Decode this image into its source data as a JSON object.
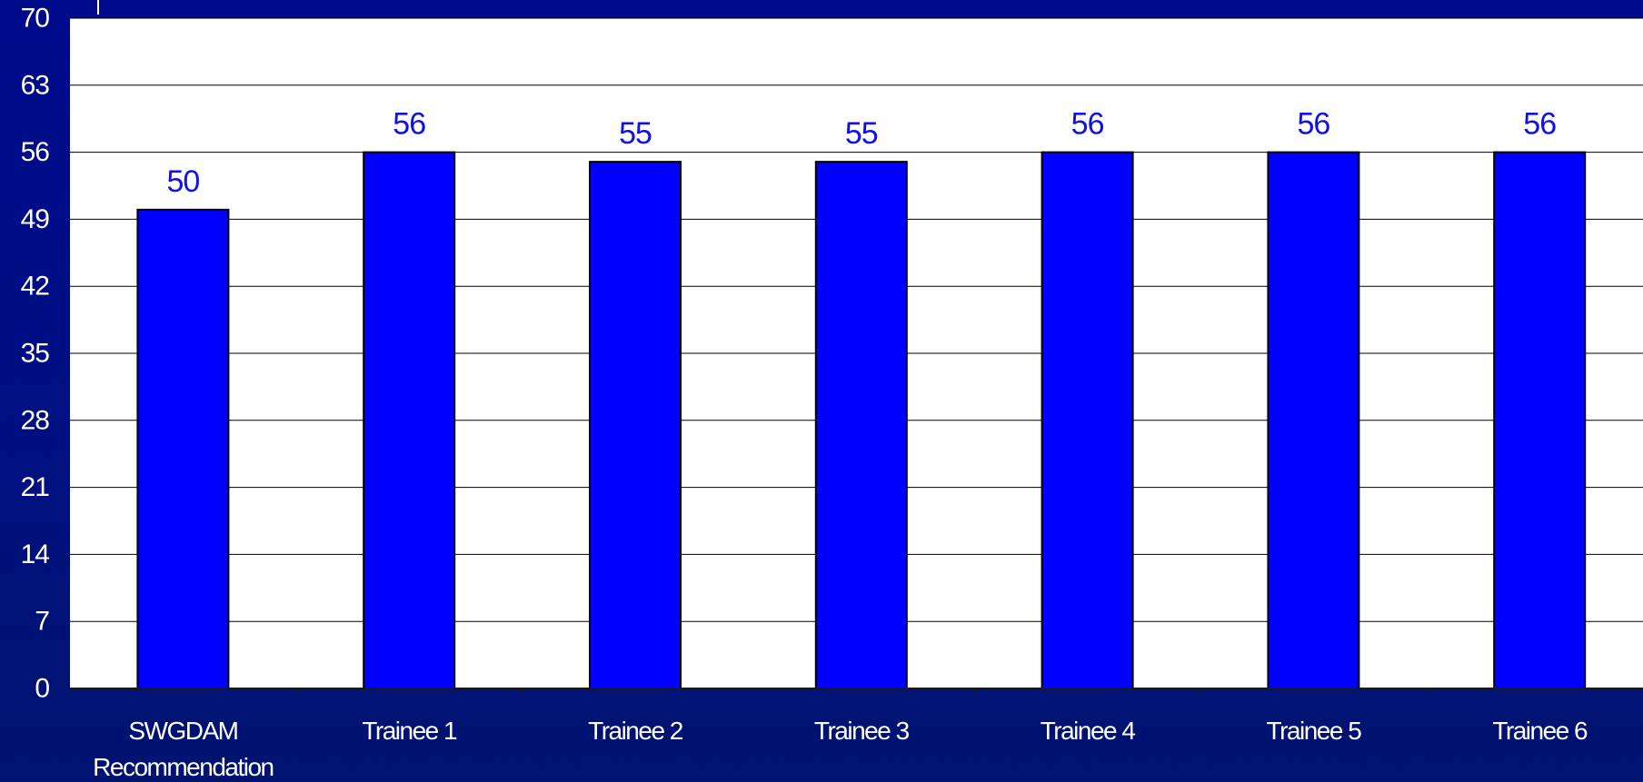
{
  "chart_data": {
    "type": "bar",
    "categories": [
      "SWGDAM Recommendation",
      "Trainee 1",
      "Trainee 2",
      "Trainee 3",
      "Trainee 4",
      "Trainee 5",
      "Trainee 6"
    ],
    "category_lines": [
      [
        "SWGDAM",
        "Recommendation"
      ],
      [
        "Trainee 1"
      ],
      [
        "Trainee 2"
      ],
      [
        "Trainee 3"
      ],
      [
        "Trainee 4"
      ],
      [
        "Trainee 5"
      ],
      [
        "Trainee 6"
      ]
    ],
    "values": [
      50,
      56,
      55,
      55,
      56,
      56,
      56
    ],
    "data_labels": [
      "50",
      "56",
      "55",
      "55",
      "56",
      "56",
      "56"
    ],
    "yticks": [
      0,
      7,
      14,
      21,
      28,
      35,
      42,
      49,
      56,
      63,
      70
    ],
    "ylim": [
      0,
      70
    ],
    "grid": true,
    "colors": {
      "bar": "#0000ff",
      "bar_outline": "#000000",
      "data_label": "#1010e8",
      "plot_background": "#ffffff",
      "gridline": "#000000",
      "background": "#000a8a",
      "tick_label": "#ffffff"
    }
  }
}
